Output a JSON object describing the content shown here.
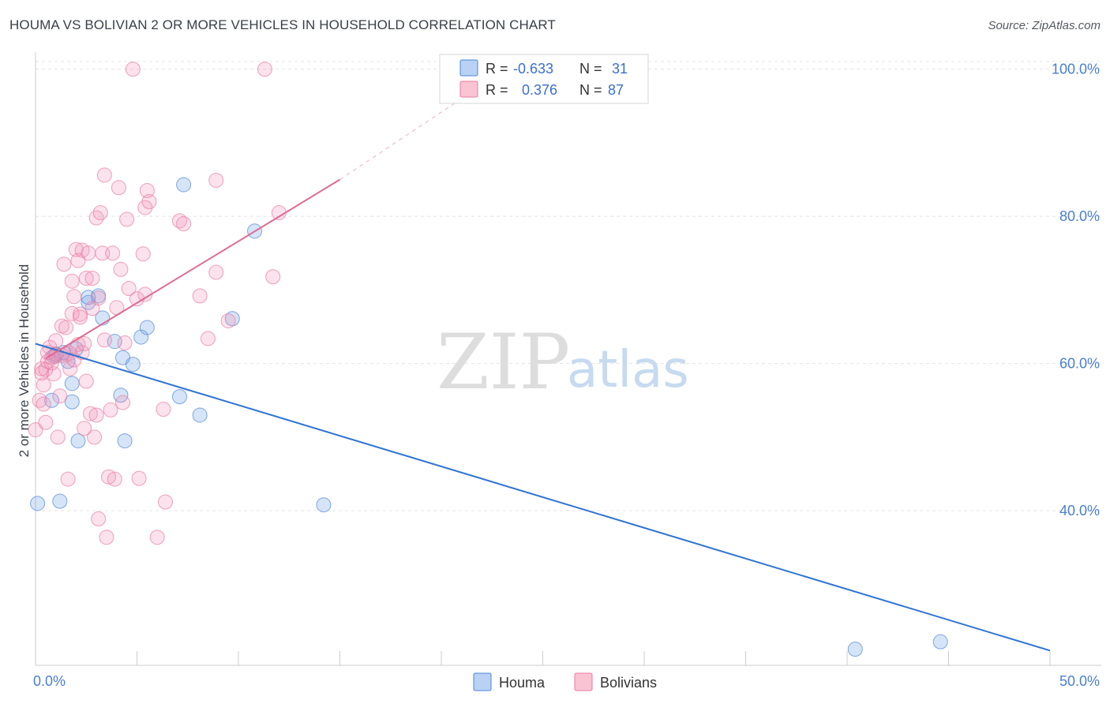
{
  "title": "HOUMA VS BOLIVIAN 2 OR MORE VEHICLES IN HOUSEHOLD CORRELATION CHART",
  "source": "Source: ZipAtlas.com",
  "watermark": {
    "zip": "ZIP",
    "atlas": "atlas"
  },
  "colors": {
    "houma": "#4a86d8",
    "bolivians": "#e97aa0",
    "houma_line": "#2f73d2",
    "bolivians_line": "#e06a93"
  },
  "chart_data": {
    "type": "scatter",
    "title": "HOUMA VS BOLIVIAN 2 OR MORE VEHICLES IN HOUSEHOLD CORRELATION CHART",
    "xlabel": "",
    "ylabel": "2 or more Vehicles in Household",
    "xlim": [
      0,
      50
    ],
    "ylim": [
      19,
      102
    ],
    "x_tick_labels": [
      "0.0%",
      "50.0%"
    ],
    "y_ticks": [
      40,
      60,
      80,
      100
    ],
    "y_tick_labels": [
      "40.0%",
      "60.0%",
      "80.0%",
      "100.0%"
    ],
    "legend": [
      {
        "name": "Houma",
        "r_label": "R =",
        "r": "-0.633",
        "n_label": "N =",
        "n": "31"
      },
      {
        "name": "Bolivians",
        "r_label": "R =",
        "r": "0.376",
        "n_label": "N =",
        "n": "87"
      }
    ],
    "series": [
      {
        "name": "Houma",
        "points": [
          [
            0.1,
            41
          ],
          [
            1.2,
            41.3
          ],
          [
            0.8,
            55
          ],
          [
            1.0,
            61.2
          ],
          [
            1.4,
            61.5
          ],
          [
            1.6,
            60.3
          ],
          [
            1.8,
            57.3
          ],
          [
            1.8,
            54.8
          ],
          [
            2.1,
            49.5
          ],
          [
            2.6,
            68.3
          ],
          [
            2.6,
            69.0
          ],
          [
            3.1,
            69.2
          ],
          [
            3.3,
            66.2
          ],
          [
            3.9,
            63.0
          ],
          [
            4.2,
            55.7
          ],
          [
            4.3,
            60.8
          ],
          [
            4.4,
            49.5
          ],
          [
            4.8,
            59.9
          ],
          [
            5.2,
            63.6
          ],
          [
            5.5,
            64.9
          ],
          [
            7.1,
            55.5
          ],
          [
            7.3,
            84.3
          ],
          [
            8.1,
            53.0
          ],
          [
            10.8,
            78.0
          ],
          [
            9.7,
            66.1
          ],
          [
            14.2,
            40.8
          ],
          [
            40.4,
            21.2
          ],
          [
            44.6,
            22.2
          ],
          [
            1.0,
            61.3
          ],
          [
            2.0,
            62.0
          ],
          [
            0.9,
            61.0
          ]
        ],
        "trend": {
          "x0": 0,
          "y0": 62.7,
          "x1": 50,
          "y1": 21.0
        }
      },
      {
        "name": "Bolivians",
        "points": [
          [
            0.0,
            51
          ],
          [
            0.2,
            55
          ],
          [
            0.3,
            58.7
          ],
          [
            0.3,
            59.3
          ],
          [
            0.4,
            54.5
          ],
          [
            0.5,
            59.2
          ],
          [
            0.5,
            52
          ],
          [
            0.6,
            60.3
          ],
          [
            0.7,
            62.2
          ],
          [
            0.8,
            60.8
          ],
          [
            0.9,
            58.6
          ],
          [
            1.0,
            61.0
          ],
          [
            1.0,
            63.1
          ],
          [
            1.1,
            50.0
          ],
          [
            1.2,
            55.6
          ],
          [
            1.3,
            61.1
          ],
          [
            1.3,
            65.1
          ],
          [
            1.4,
            73.5
          ],
          [
            1.5,
            64.9
          ],
          [
            1.6,
            44.3
          ],
          [
            1.7,
            59.3
          ],
          [
            1.7,
            61.4
          ],
          [
            1.8,
            71.2
          ],
          [
            1.8,
            66.8
          ],
          [
            1.9,
            69.1
          ],
          [
            2.0,
            75.5
          ],
          [
            2.1,
            62.6
          ],
          [
            2.2,
            66.7
          ],
          [
            2.2,
            66.3
          ],
          [
            2.3,
            61.5
          ],
          [
            2.3,
            75.4
          ],
          [
            2.4,
            51.2
          ],
          [
            2.5,
            57.6
          ],
          [
            2.5,
            71.6
          ],
          [
            2.6,
            75.0
          ],
          [
            2.7,
            53.2
          ],
          [
            2.8,
            67.5
          ],
          [
            2.8,
            71.6
          ],
          [
            2.9,
            50.0
          ],
          [
            3.0,
            53.0
          ],
          [
            3.0,
            79.8
          ],
          [
            3.1,
            68.9
          ],
          [
            3.1,
            38.9
          ],
          [
            3.2,
            80.5
          ],
          [
            3.3,
            75.0
          ],
          [
            3.4,
            63.2
          ],
          [
            3.4,
            85.6
          ],
          [
            3.5,
            36.4
          ],
          [
            3.6,
            44.6
          ],
          [
            3.7,
            53.7
          ],
          [
            3.8,
            75.0
          ],
          [
            3.9,
            44.3
          ],
          [
            4.0,
            67.6
          ],
          [
            4.1,
            83.9
          ],
          [
            4.2,
            72.8
          ],
          [
            4.3,
            54.7
          ],
          [
            4.4,
            62.8
          ],
          [
            4.5,
            79.6
          ],
          [
            4.6,
            70.2
          ],
          [
            4.8,
            100
          ],
          [
            5.0,
            68.8
          ],
          [
            5.1,
            44.4
          ],
          [
            5.3,
            74.9
          ],
          [
            5.4,
            69.4
          ],
          [
            5.4,
            81.2
          ],
          [
            5.5,
            83.5
          ],
          [
            5.6,
            82.0
          ],
          [
            6.0,
            36.4
          ],
          [
            6.3,
            53.8
          ],
          [
            6.4,
            41.2
          ],
          [
            7.1,
            79.4
          ],
          [
            7.3,
            79.0
          ],
          [
            8.1,
            69.2
          ],
          [
            8.5,
            63.4
          ],
          [
            8.9,
            72.4
          ],
          [
            8.9,
            84.9
          ],
          [
            9.5,
            65.8
          ],
          [
            11.7,
            71.8
          ],
          [
            12.0,
            80.5
          ],
          [
            11.3,
            100
          ],
          [
            0.4,
            57.1
          ],
          [
            0.6,
            61.5
          ],
          [
            0.8,
            60.1
          ],
          [
            1.5,
            61.3
          ],
          [
            2.4,
            62.7
          ],
          [
            1.9,
            60.5
          ],
          [
            2.1,
            74.0
          ]
        ],
        "trend": {
          "x0": 0.5,
          "y0": 60.7,
          "x1": 15,
          "y1": 85.0,
          "dash_x1": 21,
          "dash_y1": 96.0
        }
      }
    ]
  },
  "bottom_legend": [
    "Houma",
    "Bolivians"
  ]
}
